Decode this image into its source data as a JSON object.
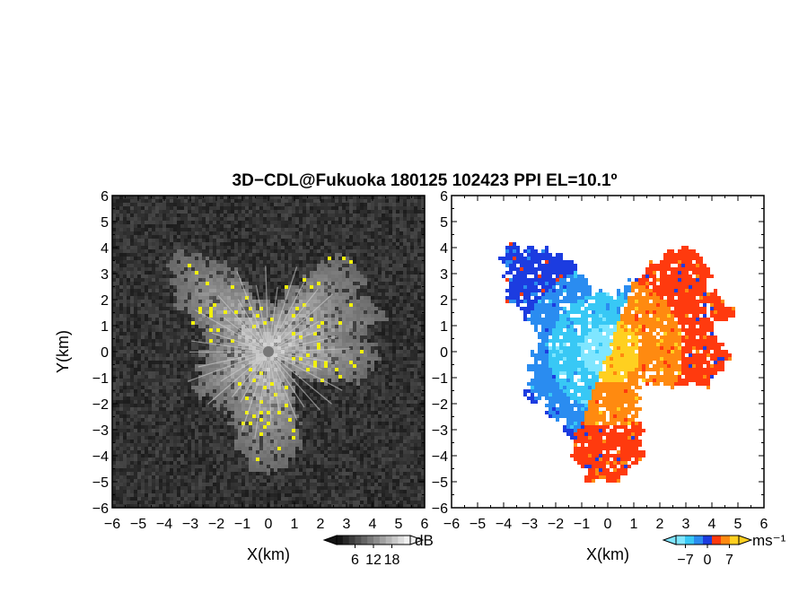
{
  "title": "3D−CDL@Fukuoka 180125 102423 PPI EL=10.1º",
  "colors": {
    "background": "#ffffff",
    "reflectivity_dark": "#1e1e1e",
    "reflectivity_bright": "#ffffff",
    "reflectivity_strong": "#f2f20a",
    "velocity_scale": [
      "#7fe6ff",
      "#38c8f5",
      "#2a8cf0",
      "#1c3ce0",
      "#ff3a0e",
      "#ff8a10",
      "#ffd020"
    ]
  },
  "chart_data": [
    {
      "type": "heatmap",
      "panel": "reflectivity",
      "xlabel": "X(km)",
      "ylabel": "Y(km)",
      "xlim": [
        -6,
        6
      ],
      "ylim": [
        -6,
        6
      ],
      "xticks": [
        "−6",
        "−5",
        "−4",
        "−3",
        "−2",
        "−1",
        "0",
        "1",
        "2",
        "3",
        "4",
        "5",
        "6"
      ],
      "yticks": [
        "−6",
        "−5",
        "−4",
        "−3",
        "−2",
        "−1",
        "0",
        "1",
        "2",
        "3",
        "4",
        "5",
        "6"
      ],
      "colorbar": {
        "ticks": [
          "6",
          "12",
          "18"
        ],
        "tick_values": [
          6,
          12,
          18
        ],
        "range": [
          0,
          24
        ],
        "unit": "dB"
      }
    },
    {
      "type": "heatmap",
      "panel": "radial_velocity",
      "xlabel": "X(km)",
      "ylabel": "",
      "xlim": [
        -6,
        6
      ],
      "ylim": [
        -6,
        6
      ],
      "xticks": [
        "−6",
        "−5",
        "−4",
        "−3",
        "−2",
        "−1",
        "0",
        "1",
        "2",
        "3",
        "4",
        "5",
        "6"
      ],
      "yticks": [
        "−6",
        "−5",
        "−4",
        "−3",
        "−2",
        "−1",
        "0",
        "1",
        "2",
        "3",
        "4",
        "5",
        "6"
      ],
      "colorbar": {
        "ticks": [
          "−7",
          "0",
          "7"
        ],
        "tick_values": [
          -7,
          0,
          7
        ],
        "range": [
          -10,
          10
        ],
        "unit": "ms⁻¹"
      }
    }
  ]
}
